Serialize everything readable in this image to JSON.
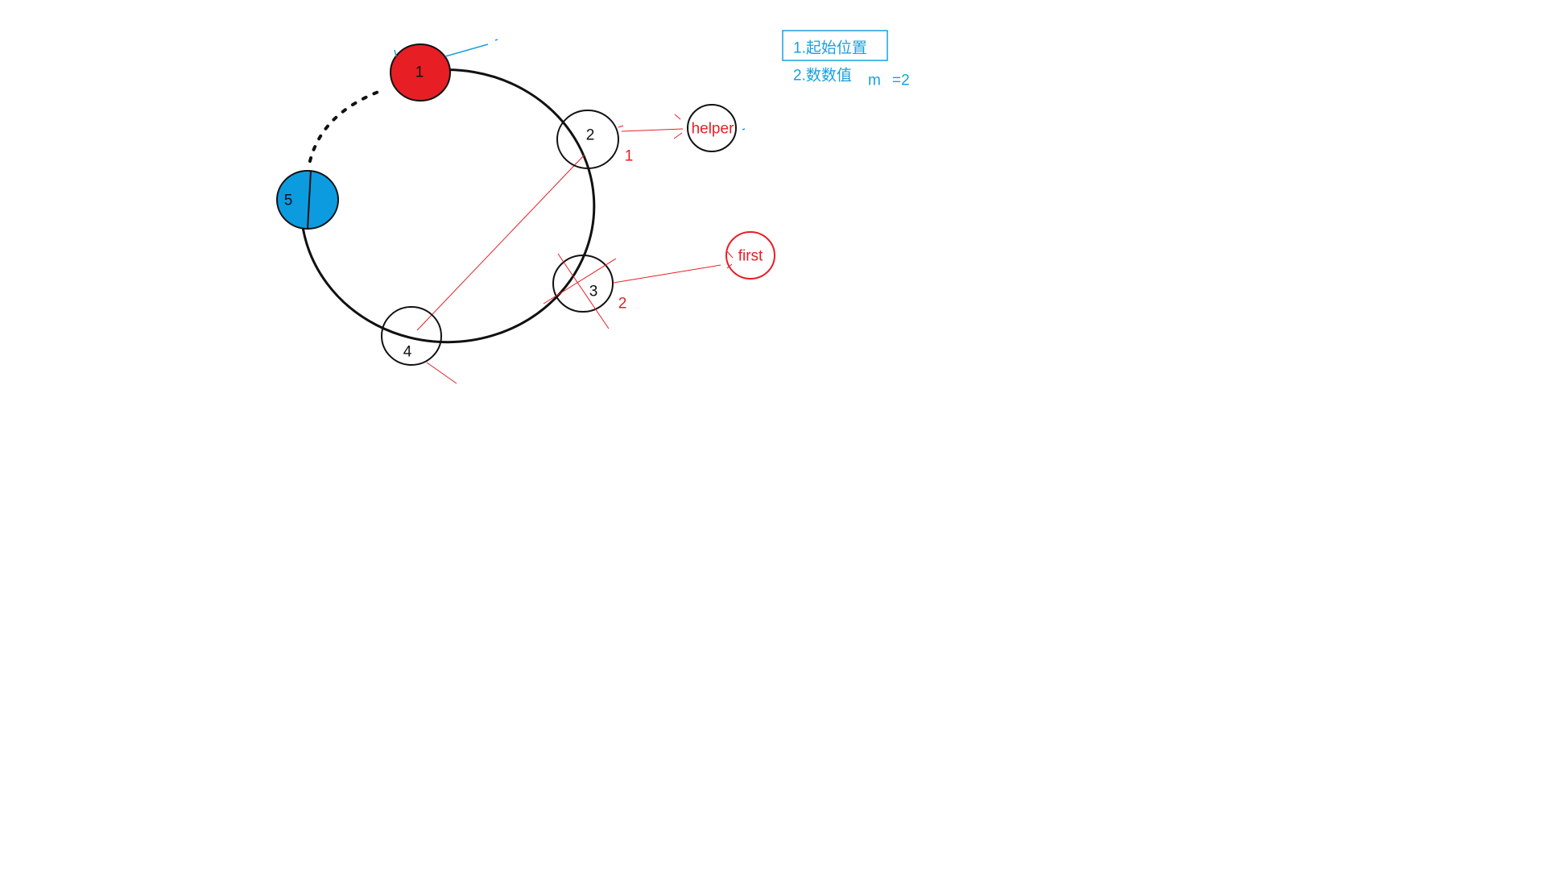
{
  "nodes": {
    "n1": {
      "label": "1",
      "fill": "#e81e25"
    },
    "n2": {
      "label": "2",
      "fill": "#ffffff"
    },
    "n3": {
      "label": "3",
      "fill": "#ffffff"
    },
    "n4": {
      "label": "4",
      "fill": "#ffffff"
    },
    "n5": {
      "label": "5",
      "fill": "#0d9be0"
    }
  },
  "pointers": {
    "helper": {
      "label": "helper",
      "step": "1"
    },
    "first": {
      "label": "first",
      "step": "2"
    }
  },
  "notes": {
    "line1": "1.起始位置",
    "line2": "2.数数值",
    "m_label": "m",
    "m_value": "=2"
  },
  "colors": {
    "black": "#111111",
    "red": "#e81e25",
    "blue": "#1a9fde",
    "node_blue": "#0d9be0"
  }
}
